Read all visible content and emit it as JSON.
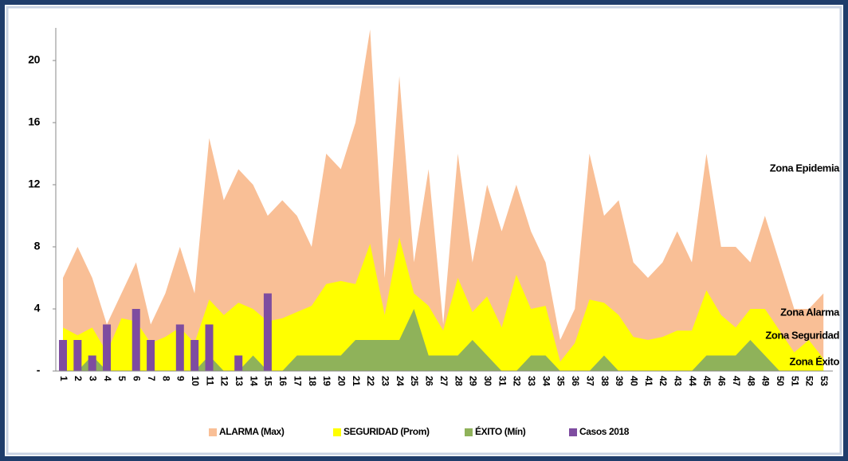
{
  "chart_data": {
    "type": "area",
    "categories": [
      "1",
      "2",
      "3",
      "4",
      "5",
      "6",
      "7",
      "8",
      "9",
      "10",
      "11",
      "12",
      "13",
      "14",
      "15",
      "16",
      "17",
      "18",
      "19",
      "20",
      "21",
      "22",
      "23",
      "24",
      "25",
      "26",
      "27",
      "28",
      "29",
      "30",
      "31",
      "32",
      "33",
      "34",
      "35",
      "36",
      "37",
      "38",
      "39",
      "40",
      "41",
      "42",
      "43",
      "44",
      "45",
      "46",
      "47",
      "48",
      "49",
      "50",
      "51",
      "52",
      "53"
    ],
    "series": [
      {
        "name": "ALARMA (Max)",
        "color": "#f9bf96",
        "kind": "area",
        "values": [
          6,
          8,
          6,
          3,
          5,
          7,
          3,
          5,
          8,
          5,
          15,
          11,
          13,
          12,
          10,
          11,
          10,
          8,
          14,
          13,
          16,
          22,
          6,
          19,
          7,
          13,
          3,
          14,
          7,
          12,
          9,
          12,
          9,
          7,
          2,
          4,
          14,
          10,
          11,
          7,
          6,
          7,
          9,
          7,
          14,
          8,
          8,
          7,
          10,
          7,
          4,
          4,
          5
        ]
      },
      {
        "name": "SEGURIDAD (Prom)",
        "color": "#ffff00",
        "kind": "area",
        "values": [
          2.8,
          2.3,
          2.8,
          1.2,
          3.4,
          3.2,
          1.8,
          2.2,
          2.8,
          1.8,
          4.6,
          3.6,
          4.4,
          4,
          3.2,
          3.4,
          3.8,
          4.2,
          5.6,
          5.8,
          5.6,
          8.2,
          3.6,
          8.6,
          5,
          4.2,
          2.6,
          6,
          3.8,
          4.8,
          2.8,
          6.2,
          4,
          4.2,
          0.6,
          1.8,
          4.6,
          4.4,
          3.6,
          2.2,
          2,
          2.2,
          2.6,
          2.6,
          5.2,
          3.6,
          2.8,
          4,
          4,
          2.6,
          1.2,
          2,
          0.8
        ]
      },
      {
        "name": "ÉXITO (Mín)",
        "color": "#8fb25a",
        "kind": "area",
        "values": [
          0,
          0,
          1,
          0,
          0,
          0,
          0,
          0,
          0,
          0,
          1,
          0,
          0,
          1,
          0,
          0,
          1,
          1,
          1,
          1,
          2,
          2,
          2,
          2,
          4,
          1,
          1,
          1,
          2,
          1,
          0,
          0,
          1,
          1,
          0,
          0,
          0,
          1,
          0,
          0,
          0,
          0,
          0,
          0,
          1,
          1,
          1,
          2,
          1,
          0,
          0,
          0,
          0
        ]
      },
      {
        "name": "Casos 2018",
        "color": "#7e4ca0",
        "kind": "bar",
        "values": [
          2,
          2,
          1,
          3,
          0,
          4,
          2,
          0,
          3,
          2,
          3,
          0,
          1,
          0,
          5,
          null,
          null,
          null,
          null,
          null,
          null,
          null,
          null,
          null,
          null,
          null,
          null,
          null,
          null,
          null,
          null,
          null,
          null,
          null,
          null,
          null,
          null,
          null,
          null,
          null,
          null,
          null,
          null,
          null,
          null,
          null,
          null,
          null,
          null,
          null,
          null,
          null,
          null
        ]
      }
    ],
    "annotations": [
      "Zona Epidemia",
      "Zona Alarma",
      "Zona Seguridad",
      "Zona Éxito"
    ],
    "ylim": [
      0,
      22
    ],
    "yticks": [
      {
        "value": 0,
        "label": "-"
      },
      4,
      8,
      12,
      16,
      20
    ],
    "legend": "bottom"
  }
}
